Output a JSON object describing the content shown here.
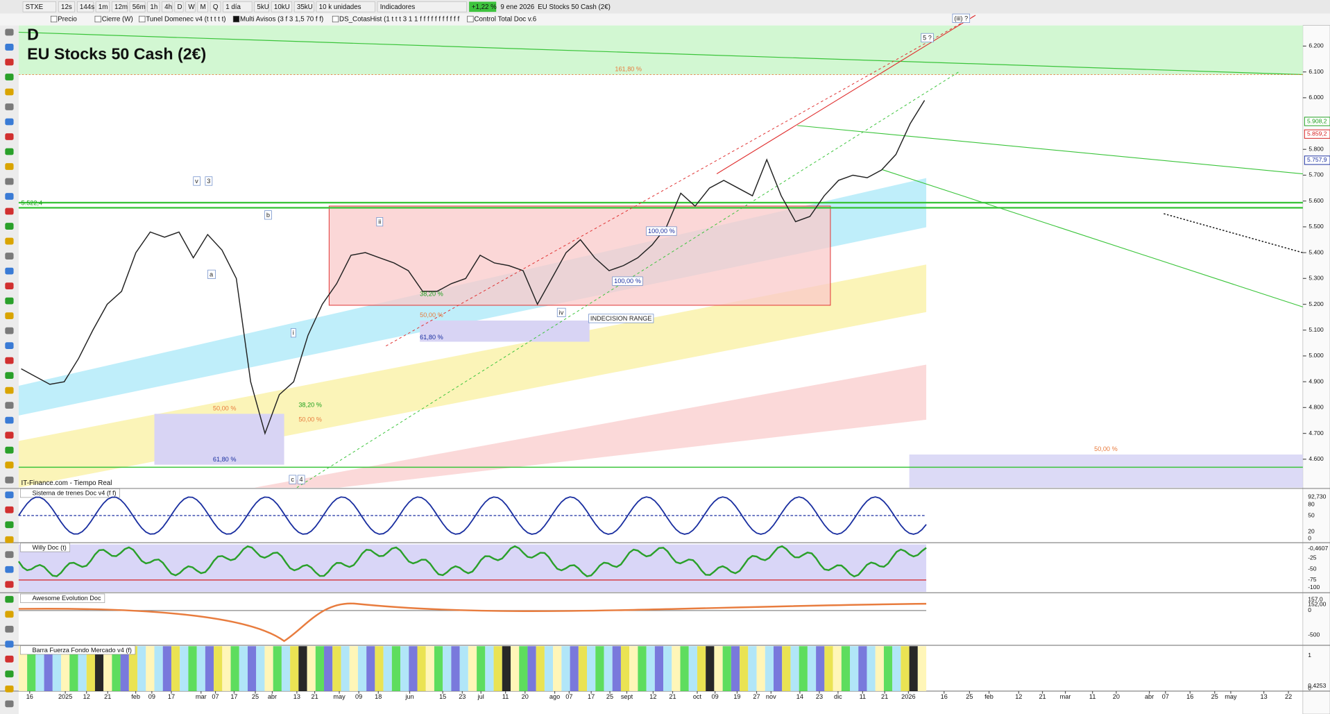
{
  "toolbar": [
    "STXE",
    "12s",
    "144s",
    "1m",
    "12m",
    "56m",
    "1h",
    "4h",
    "D",
    "W",
    "M",
    "Q",
    "1 día",
    "5kU",
    "10kU",
    "35kU",
    "10 k unidades",
    "Indicadores",
    "+1,22 %",
    "9 ene 2026",
    "EU Stocks 50 Cash (2€)"
  ],
  "indicator_bar": [
    "Precio",
    "Cierre (W)",
    "Tunel Domenec v4 (t t t t t)",
    "Multi Avisos (3 f 3 1,5 70 f f)",
    "DS_CotasHist (1 t t t 3 1 1 f f f f f f f f f f f",
    "Control Total Doc v.6"
  ],
  "chart": {
    "timeframe": "D",
    "title": "EU Stocks 50 Cash (2€)",
    "source": "IT-Finance.com - Tiempo Real",
    "ylim": [
      4490,
      6280
    ],
    "yticks": [
      {
        "value": 6200,
        "label": "6.200"
      },
      {
        "value": 6100,
        "label": "6.100"
      },
      {
        "value": 6000,
        "label": "6.000"
      },
      {
        "value": 5800,
        "label": "5.800"
      },
      {
        "value": 5700,
        "label": "5.700"
      },
      {
        "value": 5600,
        "label": "5.600"
      },
      {
        "value": 5500,
        "label": "5.500"
      },
      {
        "value": 5400,
        "label": "5.400"
      },
      {
        "value": 5300,
        "label": "5.300"
      },
      {
        "value": 5200,
        "label": "5.200"
      },
      {
        "value": 5100,
        "label": "5.100"
      },
      {
        "value": 5000,
        "label": "5.000"
      },
      {
        "value": 4900,
        "label": "4.900"
      },
      {
        "value": 4800,
        "label": "4.800"
      },
      {
        "value": 4700,
        "label": "4.700"
      },
      {
        "value": 4600,
        "label": "4.600"
      }
    ],
    "price_tags": [
      {
        "value": 5908.2,
        "label": "5.908,2",
        "color": "#1ea01e"
      },
      {
        "value": 5859.2,
        "label": "5.859,2",
        "color": "#d62020"
      },
      {
        "value": 5757.9,
        "label": "5.757,9",
        "color": "#1a2fa0"
      }
    ],
    "price": {
      "color": "#222222",
      "values": [
        4950,
        4920,
        4890,
        4900,
        4990,
        5100,
        5200,
        5250,
        5400,
        5480,
        5460,
        5480,
        5380,
        5470,
        5410,
        5300,
        4900,
        4700,
        4850,
        4900,
        5080,
        5200,
        5280,
        5390,
        5400,
        5380,
        5360,
        5330,
        5250,
        5250,
        5280,
        5300,
        5390,
        5360,
        5350,
        5330,
        5200,
        5300,
        5400,
        5450,
        5380,
        5330,
        5350,
        5380,
        5430,
        5500,
        5630,
        5580,
        5650,
        5680,
        5650,
        5620,
        5760,
        5620,
        5520,
        5540,
        5620,
        5680,
        5700,
        5690,
        5720,
        5780,
        5900,
        5990
      ]
    },
    "annotations": [
      "161,80 %",
      "5 ?",
      "(iii) ?",
      "v",
      "3",
      "b",
      "a",
      "i",
      "ii",
      "iv",
      "INDECISION RANGE",
      "100,00 %",
      "100,00 %",
      "38,20 %",
      "50,00 %",
      "61,80 %",
      "50,00 %",
      "61,80 %",
      "38,20 %",
      "50,00 %",
      "50,00 %",
      "5.522,4",
      "c",
      "4"
    ]
  },
  "panels": [
    {
      "title": "Sistema de trenes Doc v4 (f f)",
      "axis": [
        "92,730",
        "80",
        "50",
        "20",
        "0"
      ]
    },
    {
      "title": "Willy Doc (t)",
      "axis": [
        "-0,4607",
        "-25",
        "-50",
        "-75",
        "-100"
      ]
    },
    {
      "title": "Awesome Evolution Doc",
      "axis": [
        "157,0",
        "152,00",
        "0",
        "-500"
      ]
    },
    {
      "title": "Barra Fuerza Fondo Mercado v4 (f)",
      "axis": [
        "1",
        "0,4253",
        "0"
      ]
    }
  ],
  "x_axis": [
    "16",
    "2025",
    "12",
    "21",
    "feb",
    "09",
    "17",
    "mar",
    "07",
    "17",
    "25",
    "abr",
    "13",
    "21",
    "may",
    "09",
    "18",
    "jun",
    "15",
    "23",
    "jul",
    "11",
    "20",
    "ago",
    "07",
    "17",
    "25",
    "sept",
    "12",
    "21",
    "oct",
    "09",
    "19",
    "27",
    "nov",
    "14",
    "23",
    "dic",
    "11",
    "21",
    "2026",
    "16",
    "25",
    "feb",
    "12",
    "21",
    "mar",
    "11",
    "20",
    "abr",
    "07",
    "16",
    "25",
    "may",
    "13",
    "22"
  ]
}
